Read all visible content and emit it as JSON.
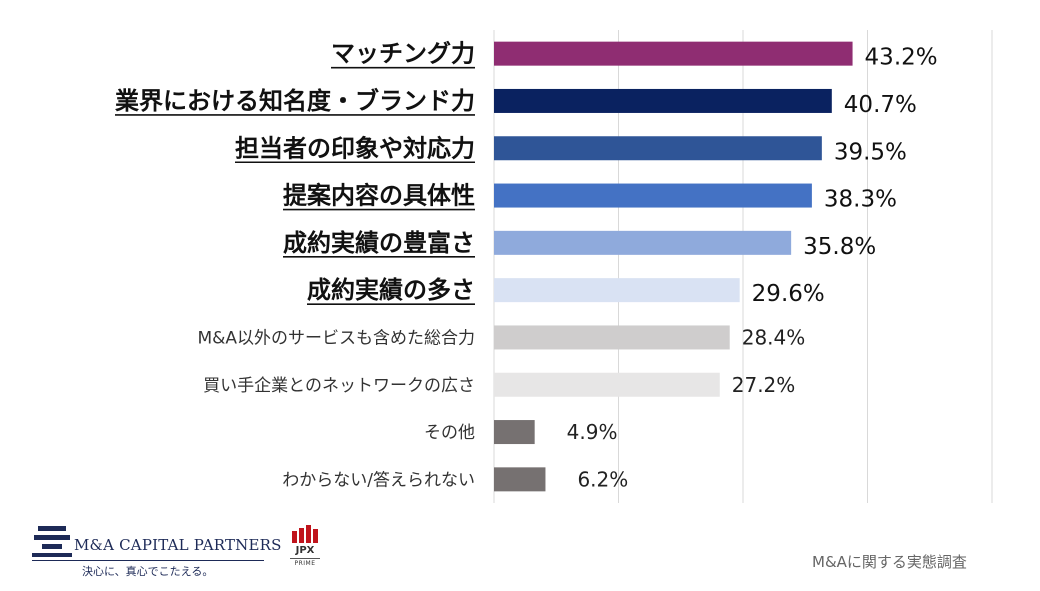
{
  "chart_data": {
    "type": "bar",
    "orientation": "horizontal",
    "categories": [
      "マッチング力",
      "業界における知名度・ブランド力",
      "担当者の印象や対応力",
      "提案内容の具体性",
      "成約実績の豊富さ",
      "成約実績の多さ",
      "M&A以外のサービスも含めた総合力",
      "買い手企業とのネットワークの広さ",
      "その他",
      "わからない/答えられない"
    ],
    "values": [
      43.2,
      40.7,
      39.5,
      38.3,
      35.8,
      29.6,
      28.4,
      27.2,
      4.9,
      6.2
    ],
    "value_labels": [
      "43.2%",
      "40.7%",
      "39.5%",
      "38.3%",
      "35.8%",
      "29.6%",
      "28.4%",
      "27.2%",
      "4.9%",
      "6.2%"
    ],
    "emphasized": [
      true,
      true,
      true,
      true,
      true,
      true,
      false,
      false,
      false,
      false
    ],
    "bar_colors": [
      "#8f2d72",
      "#0a2260",
      "#2f5597",
      "#4472c4",
      "#8faadc",
      "#d9e2f3",
      "#cfcdcd",
      "#e7e6e6",
      "#767171",
      "#767171"
    ],
    "xlim": [
      0,
      60
    ],
    "gridlines": [
      0,
      15,
      30,
      45,
      60
    ],
    "grid_color": "#d9d9d9",
    "title": "",
    "xlabel": "",
    "ylabel": ""
  },
  "logo": {
    "company": "M&A CAPITAL PARTNERS",
    "tagline": "決心に、真心でこたえる。"
  },
  "jpx_badge": {
    "name": "JPX",
    "sub": "PRIME",
    "color": "#c0141c"
  },
  "footer": {
    "title": "M&Aに関する実態調査"
  }
}
